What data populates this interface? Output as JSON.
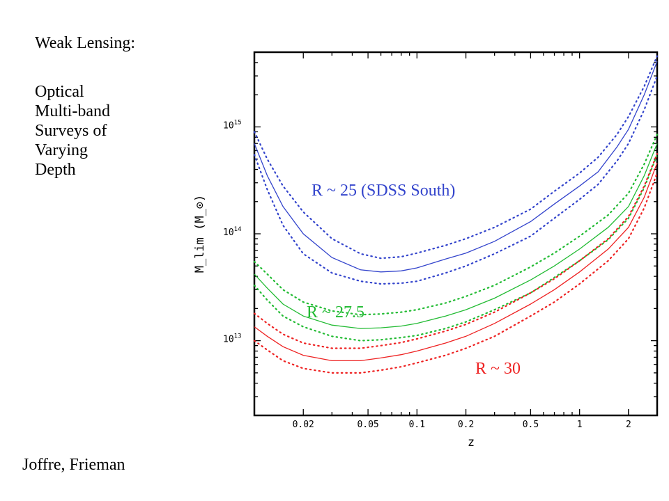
{
  "slide": {
    "title": "Weak Lensing:",
    "description_lines": [
      "Optical",
      "Multi-band",
      "Surveys of",
      "Varying",
      "Depth"
    ],
    "credit": "Joffre, Frieman"
  },
  "chart_data": {
    "type": "line",
    "xlabel": "z",
    "ylabel": "M_lim (M_⊙)",
    "xscale": "log",
    "yscale": "log",
    "xlim": [
      0.01,
      3.0
    ],
    "ylim": [
      2000000000000.0,
      5000000000000000.0
    ],
    "xticks": [
      {
        "value": 0.02,
        "label": "0.02"
      },
      {
        "value": 0.05,
        "label": "0.05"
      },
      {
        "value": 0.1,
        "label": "0.1"
      },
      {
        "value": 0.2,
        "label": "0.2"
      },
      {
        "value": 0.5,
        "label": "0.5"
      },
      {
        "value": 1,
        "label": "1"
      },
      {
        "value": 2,
        "label": "2"
      }
    ],
    "yticks": [
      {
        "value": 10000000000000.0,
        "mantissa": "10",
        "exp": "13"
      },
      {
        "value": 100000000000000.0,
        "mantissa": "10",
        "exp": "14"
      },
      {
        "value": 1000000000000000.0,
        "mantissa": "10",
        "exp": "15"
      }
    ],
    "grid": false,
    "legend": "none",
    "series": [
      {
        "name": "R ~ 25 (SDSS South)",
        "color": "#3344cc",
        "style": "solid",
        "points": [
          [
            0.01,
            700000000000000.0
          ],
          [
            0.012,
            350000000000000.0
          ],
          [
            0.015,
            180000000000000.0
          ],
          [
            0.02,
            100000000000000.0
          ],
          [
            0.03,
            60000000000000.0
          ],
          [
            0.045,
            46000000000000.0
          ],
          [
            0.06,
            44000000000000.0
          ],
          [
            0.08,
            45000000000000.0
          ],
          [
            0.1,
            48000000000000.0
          ],
          [
            0.15,
            58000000000000.0
          ],
          [
            0.2,
            66000000000000.0
          ],
          [
            0.3,
            85000000000000.0
          ],
          [
            0.5,
            130000000000000.0
          ],
          [
            0.7,
            190000000000000.0
          ],
          [
            1.0,
            280000000000000.0
          ],
          [
            1.3,
            380000000000000.0
          ],
          [
            1.7,
            650000000000000.0
          ],
          [
            2.0,
            950000000000000.0
          ],
          [
            2.5,
            2000000000000000.0
          ],
          [
            3.0,
            4100000000000000.0
          ]
        ]
      },
      {
        "name": "",
        "color": "#3344cc",
        "style": "dotted",
        "points": [
          [
            0.01,
            900000000000000.0
          ],
          [
            0.012,
            500000000000000.0
          ],
          [
            0.015,
            280000000000000.0
          ],
          [
            0.02,
            160000000000000.0
          ],
          [
            0.03,
            90000000000000.0
          ],
          [
            0.045,
            65000000000000.0
          ],
          [
            0.06,
            59000000000000.0
          ],
          [
            0.08,
            61000000000000.0
          ],
          [
            0.1,
            66000000000000.0
          ],
          [
            0.15,
            78000000000000.0
          ],
          [
            0.2,
            90000000000000.0
          ],
          [
            0.3,
            115000000000000.0
          ],
          [
            0.5,
            170000000000000.0
          ],
          [
            0.7,
            250000000000000.0
          ],
          [
            1.0,
            370000000000000.0
          ],
          [
            1.3,
            520000000000000.0
          ],
          [
            1.7,
            850000000000000.0
          ],
          [
            2.0,
            1250000000000000.0
          ],
          [
            2.5,
            2400000000000000.0
          ],
          [
            3.0,
            4600000000000000.0
          ]
        ]
      },
      {
        "name": "",
        "color": "#3344cc",
        "style": "dotted",
        "points": [
          [
            0.01,
            550000000000000.0
          ],
          [
            0.012,
            260000000000000.0
          ],
          [
            0.015,
            120000000000000.0
          ],
          [
            0.02,
            65000000000000.0
          ],
          [
            0.03,
            43000000000000.0
          ],
          [
            0.045,
            36000000000000.0
          ],
          [
            0.06,
            34000000000000.0
          ],
          [
            0.08,
            34500000000000.0
          ],
          [
            0.1,
            36000000000000.0
          ],
          [
            0.15,
            43000000000000.0
          ],
          [
            0.2,
            50000000000000.0
          ],
          [
            0.3,
            65000000000000.0
          ],
          [
            0.5,
            95000000000000.0
          ],
          [
            0.7,
            140000000000000.0
          ],
          [
            1.0,
            210000000000000.0
          ],
          [
            1.3,
            290000000000000.0
          ],
          [
            1.7,
            480000000000000.0
          ],
          [
            2.0,
            700000000000000.0
          ],
          [
            2.5,
            1450000000000000.0
          ],
          [
            3.0,
            3000000000000000.0
          ]
        ]
      },
      {
        "name": "R ~ 27.5",
        "color": "#22bb33",
        "style": "solid",
        "points": [
          [
            0.01,
            42000000000000.0
          ],
          [
            0.012,
            31000000000000.0
          ],
          [
            0.015,
            22000000000000.0
          ],
          [
            0.02,
            17000000000000.0
          ],
          [
            0.03,
            14000000000000.0
          ],
          [
            0.045,
            13000000000000.0
          ],
          [
            0.06,
            13200000000000.0
          ],
          [
            0.08,
            13700000000000.0
          ],
          [
            0.1,
            14500000000000.0
          ],
          [
            0.15,
            17000000000000.0
          ],
          [
            0.2,
            19500000000000.0
          ],
          [
            0.3,
            25000000000000.0
          ],
          [
            0.5,
            37000000000000.0
          ],
          [
            0.7,
            50000000000000.0
          ],
          [
            1.0,
            72000000000000.0
          ],
          [
            1.5,
            115000000000000.0
          ],
          [
            2.0,
            180000000000000.0
          ],
          [
            2.5,
            350000000000000.0
          ],
          [
            3.0,
            700000000000000.0
          ]
        ]
      },
      {
        "name": "",
        "color": "#22bb33",
        "style": "dotted",
        "points": [
          [
            0.01,
            55000000000000.0
          ],
          [
            0.012,
            42000000000000.0
          ],
          [
            0.015,
            30000000000000.0
          ],
          [
            0.02,
            23000000000000.0
          ],
          [
            0.03,
            19000000000000.0
          ],
          [
            0.045,
            17500000000000.0
          ],
          [
            0.06,
            17800000000000.0
          ],
          [
            0.08,
            18500000000000.0
          ],
          [
            0.1,
            19500000000000.0
          ],
          [
            0.15,
            22500000000000.0
          ],
          [
            0.2,
            26000000000000.0
          ],
          [
            0.3,
            33000000000000.0
          ],
          [
            0.5,
            49000000000000.0
          ],
          [
            0.7,
            66000000000000.0
          ],
          [
            1.0,
            95000000000000.0
          ],
          [
            1.5,
            150000000000000.0
          ],
          [
            2.0,
            240000000000000.0
          ],
          [
            2.5,
            450000000000000.0
          ],
          [
            3.0,
            850000000000000.0
          ]
        ]
      },
      {
        "name": "",
        "color": "#22bb33",
        "style": "dotted",
        "points": [
          [
            0.01,
            33000000000000.0
          ],
          [
            0.012,
            24000000000000.0
          ],
          [
            0.015,
            17000000000000.0
          ],
          [
            0.02,
            13500000000000.0
          ],
          [
            0.03,
            11000000000000.0
          ],
          [
            0.045,
            10000000000000.0
          ],
          [
            0.06,
            10200000000000.0
          ],
          [
            0.08,
            10700000000000.0
          ],
          [
            0.1,
            11200000000000.0
          ],
          [
            0.15,
            13000000000000.0
          ],
          [
            0.2,
            15000000000000.0
          ],
          [
            0.3,
            19500000000000.0
          ],
          [
            0.5,
            28000000000000.0
          ],
          [
            0.7,
            39000000000000.0
          ],
          [
            1.0,
            56000000000000.0
          ],
          [
            1.5,
            88000000000000.0
          ],
          [
            2.0,
            140000000000000.0
          ],
          [
            2.5,
            270000000000000.0
          ],
          [
            3.0,
            550000000000000.0
          ]
        ]
      },
      {
        "name": "R ~ 30",
        "color": "#ee2222",
        "style": "solid",
        "points": [
          [
            0.01,
            13500000000000.0
          ],
          [
            0.012,
            11000000000000.0
          ],
          [
            0.015,
            8800000000000.0
          ],
          [
            0.02,
            7300000000000.0
          ],
          [
            0.03,
            6500000000000.0
          ],
          [
            0.045,
            6500000000000.0
          ],
          [
            0.06,
            6900000000000.0
          ],
          [
            0.08,
            7400000000000.0
          ],
          [
            0.1,
            8000000000000.0
          ],
          [
            0.15,
            9500000000000.0
          ],
          [
            0.2,
            11000000000000.0
          ],
          [
            0.3,
            14500000000000.0
          ],
          [
            0.5,
            22000000000000.0
          ],
          [
            0.7,
            30000000000000.0
          ],
          [
            1.0,
            44000000000000.0
          ],
          [
            1.5,
            72000000000000.0
          ],
          [
            2.0,
            115000000000000.0
          ],
          [
            2.5,
            220000000000000.0
          ],
          [
            3.0,
            460000000000000.0
          ]
        ]
      },
      {
        "name": "",
        "color": "#ee2222",
        "style": "dotted",
        "points": [
          [
            0.01,
            18000000000000.0
          ],
          [
            0.012,
            14500000000000.0
          ],
          [
            0.015,
            11500000000000.0
          ],
          [
            0.02,
            9500000000000.0
          ],
          [
            0.03,
            8500000000000.0
          ],
          [
            0.045,
            8500000000000.0
          ],
          [
            0.06,
            9000000000000.0
          ],
          [
            0.08,
            9600000000000.0
          ],
          [
            0.1,
            10400000000000.0
          ],
          [
            0.15,
            12300000000000.0
          ],
          [
            0.2,
            14200000000000.0
          ],
          [
            0.3,
            18500000000000.0
          ],
          [
            0.5,
            28000000000000.0
          ],
          [
            0.7,
            38000000000000.0
          ],
          [
            1.0,
            56000000000000.0
          ],
          [
            1.5,
            90000000000000.0
          ],
          [
            2.0,
            145000000000000.0
          ],
          [
            2.5,
            280000000000000.0
          ],
          [
            3.0,
            560000000000000.0
          ]
        ]
      },
      {
        "name": "",
        "color": "#ee2222",
        "style": "dotted",
        "points": [
          [
            0.01,
            10000000000000.0
          ],
          [
            0.012,
            8200000000000.0
          ],
          [
            0.015,
            6500000000000.0
          ],
          [
            0.02,
            5500000000000.0
          ],
          [
            0.03,
            5000000000000.0
          ],
          [
            0.045,
            5000000000000.0
          ],
          [
            0.06,
            5300000000000.0
          ],
          [
            0.08,
            5700000000000.0
          ],
          [
            0.1,
            6200000000000.0
          ],
          [
            0.15,
            7300000000000.0
          ],
          [
            0.2,
            8500000000000.0
          ],
          [
            0.3,
            11000000000000.0
          ],
          [
            0.5,
            17000000000000.0
          ],
          [
            0.7,
            23000000000000.0
          ],
          [
            1.0,
            34000000000000.0
          ],
          [
            1.5,
            56000000000000.0
          ],
          [
            2.0,
            90000000000000.0
          ],
          [
            2.5,
            175000000000000.0
          ],
          [
            3.0,
            370000000000000.0
          ]
        ]
      }
    ],
    "annotations": [
      {
        "text": "R ~ 25 (SDSS South)",
        "color": "#3344cc"
      },
      {
        "text": "R ~ 27.5",
        "color": "#22bb33"
      },
      {
        "text": "R ~ 30",
        "color": "#ee2222"
      }
    ]
  }
}
